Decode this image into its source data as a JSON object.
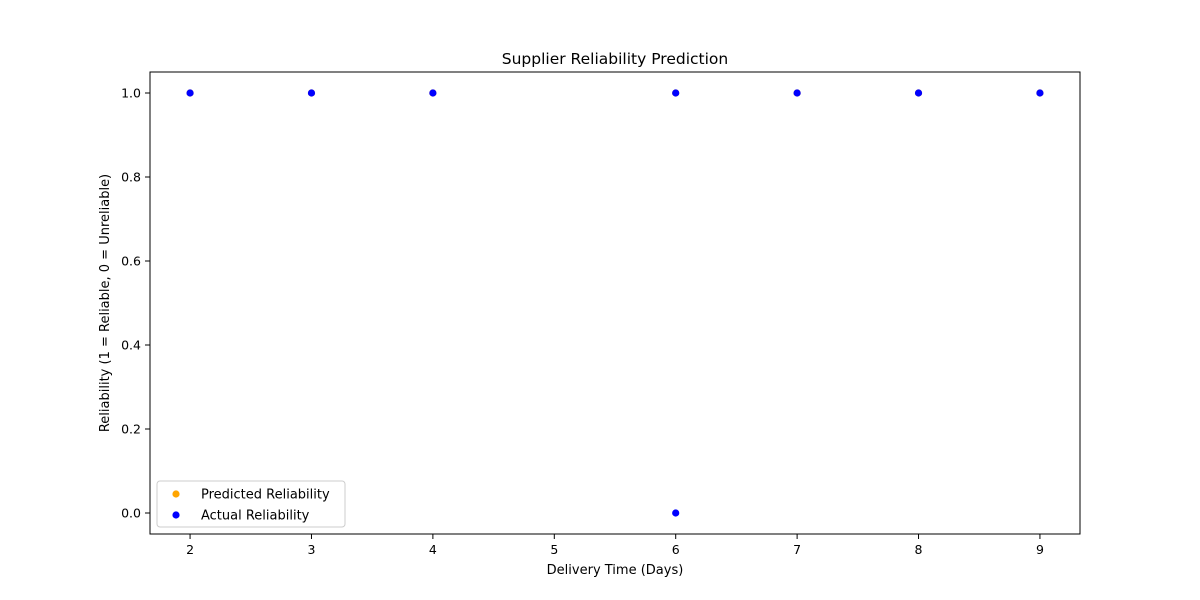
{
  "chart_data": {
    "type": "scatter",
    "title": "Supplier Reliability Prediction",
    "xlabel": "Delivery Time (Days)",
    "ylabel": "Reliability (1 = Reliable, 0 = Unreliable)",
    "xlim": [
      1.67,
      9.33
    ],
    "ylim": [
      -0.05,
      1.05
    ],
    "x_ticks": [
      2,
      3,
      4,
      5,
      6,
      7,
      8,
      9
    ],
    "y_ticks": [
      0.0,
      0.2,
      0.4,
      0.6,
      0.8,
      1.0
    ],
    "grid": false,
    "legend_position": "bottom-left",
    "series": [
      {
        "name": "Predicted Reliability",
        "color": "#ffa500",
        "points": [
          [
            2,
            1
          ],
          [
            3,
            1
          ],
          [
            4,
            1
          ],
          [
            6,
            1
          ],
          [
            7,
            1
          ],
          [
            8,
            1
          ],
          [
            9,
            1
          ]
        ]
      },
      {
        "name": "Actual Reliability",
        "color": "#0000ff",
        "points": [
          [
            2,
            1
          ],
          [
            3,
            1
          ],
          [
            4,
            1
          ],
          [
            6,
            1
          ],
          [
            6,
            0
          ],
          [
            7,
            1
          ],
          [
            8,
            1
          ],
          [
            9,
            1
          ]
        ]
      }
    ]
  }
}
